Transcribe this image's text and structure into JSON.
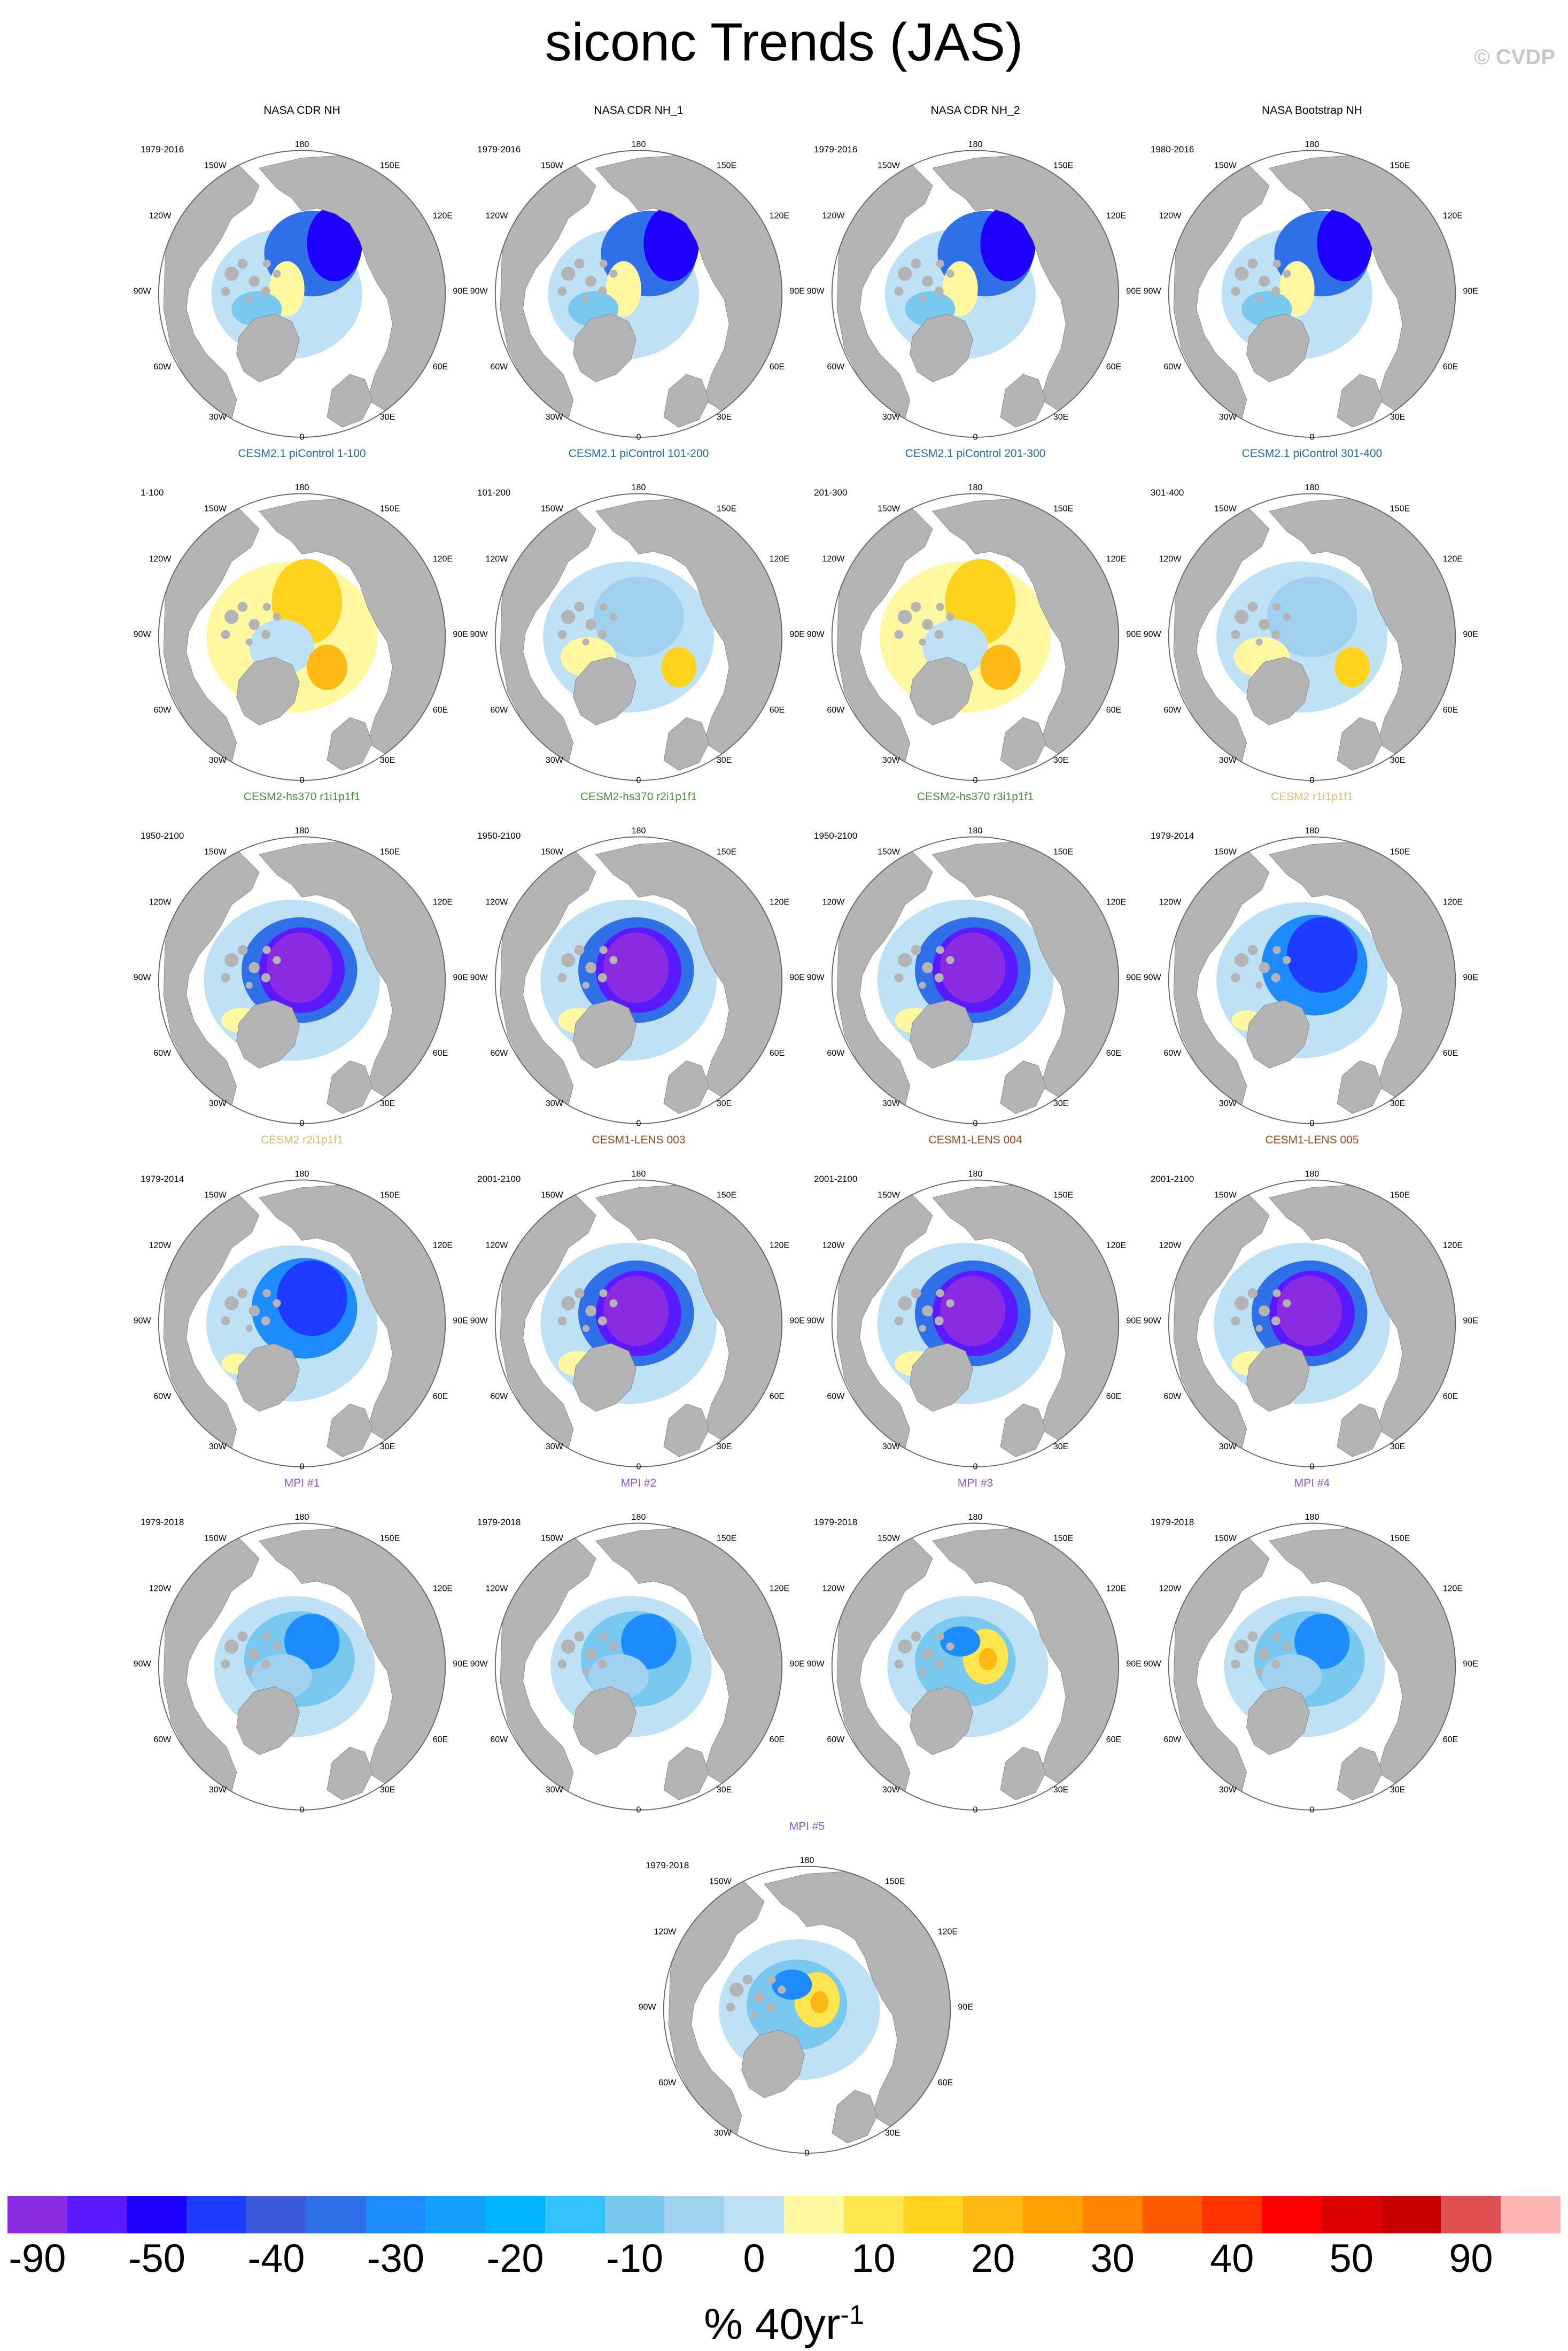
{
  "title": "siconc Trends (JAS)",
  "copyright": "© CVDP",
  "lon_labels": {
    "l180": "180",
    "l150e": "150E",
    "l120e": "120E",
    "l90e": "90E",
    "l60e": "60E",
    "l30e": "30E",
    "l0": "0",
    "l30w": "30W",
    "l60w": "60W",
    "l90w": "90W",
    "l120w": "120W",
    "l150w": "150W"
  },
  "panels": [
    {
      "title": "NASA CDR NH",
      "years": "1979-2016",
      "title_color": "#000000",
      "pattern": "obs"
    },
    {
      "title": "NASA CDR NH_1",
      "years": "1979-2016",
      "title_color": "#000000",
      "pattern": "obs"
    },
    {
      "title": "NASA CDR NH_2",
      "years": "1979-2016",
      "title_color": "#000000",
      "pattern": "obs"
    },
    {
      "title": "NASA Bootstrap NH",
      "years": "1980-2016",
      "title_color": "#000000",
      "pattern": "obs"
    },
    {
      "title": "CESM2.1 piControl 1-100",
      "years": "1-100",
      "title_color": "#1a6fa0",
      "pattern": "control_warm"
    },
    {
      "title": "CESM2.1 piControl 101-200",
      "years": "101-200",
      "title_color": "#1a6fa0",
      "pattern": "control_cool"
    },
    {
      "title": "CESM2.1 piControl 201-300",
      "years": "201-300",
      "title_color": "#1a6fa0",
      "pattern": "control_warm"
    },
    {
      "title": "CESM2.1 piControl 301-400",
      "years": "301-400",
      "title_color": "#1a6fa0",
      "pattern": "control_cool"
    },
    {
      "title": "CESM2-hs370 r1i1p1f1",
      "years": "1950-2100",
      "title_color": "#4a8c3a",
      "pattern": "strong"
    },
    {
      "title": "CESM2-hs370 r2i1p1f1",
      "years": "1950-2100",
      "title_color": "#4a8c3a",
      "pattern": "strong"
    },
    {
      "title": "CESM2-hs370 r3i1p1f1",
      "years": "1950-2100",
      "title_color": "#4a8c3a",
      "pattern": "strong"
    },
    {
      "title": "CESM2 r1i1p1f1",
      "years": "1979-2014",
      "title_color": "#d8c06a",
      "pattern": "medium"
    },
    {
      "title": "CESM2 r2i1p1f1",
      "years": "1979-2014",
      "title_color": "#d8c06a",
      "pattern": "medium"
    },
    {
      "title": "CESM1-LENS 003",
      "years": "2001-2100",
      "title_color": "#9a4a1a",
      "pattern": "strong"
    },
    {
      "title": "CESM1-LENS 004",
      "years": "2001-2100",
      "title_color": "#9a4a1a",
      "pattern": "strong"
    },
    {
      "title": "CESM1-LENS 005",
      "years": "2001-2100",
      "title_color": "#9a4a1a",
      "pattern": "strong"
    },
    {
      "title": "MPI #1",
      "years": "1979-2018",
      "title_color": "#8a5ad8",
      "pattern": "mpi"
    },
    {
      "title": "MPI #2",
      "years": "1979-2018",
      "title_color": "#8a5ad8",
      "pattern": "mpi"
    },
    {
      "title": "MPI #3",
      "years": "1979-2018",
      "title_color": "#8a5ad8",
      "pattern": "mpi_warm"
    },
    {
      "title": "MPI #4",
      "years": "1979-2018",
      "title_color": "#8a5ad8",
      "pattern": "mpi"
    },
    {
      "title": "MPI #5",
      "years": "1979-2018",
      "title_color": "#8a5ad8",
      "pattern": "mpi_warm"
    }
  ],
  "colorbar": {
    "colors": [
      "#8a2be2",
      "#5a1aff",
      "#1e00ff",
      "#1e3cff",
      "#3b5bdb",
      "#2f6fe8",
      "#1e8cff",
      "#14a0ff",
      "#00b4ff",
      "#32c3ff",
      "#78c8f0",
      "#a0d2f0",
      "#bee1f5",
      "#fff8a0",
      "#ffe650",
      "#ffd21e",
      "#ffb914",
      "#ffa000",
      "#ff8200",
      "#ff5a00",
      "#ff3200",
      "#ff0000",
      "#dc0000",
      "#c80000",
      "#e05050",
      "#ffb4b4"
    ],
    "labels": [
      "-90",
      "-50",
      "-40",
      "-30",
      "-20",
      "-10",
      "0",
      "10",
      "20",
      "30",
      "40",
      "50",
      "90"
    ],
    "units": "% 40yr",
    "units_exp": "-1"
  }
}
